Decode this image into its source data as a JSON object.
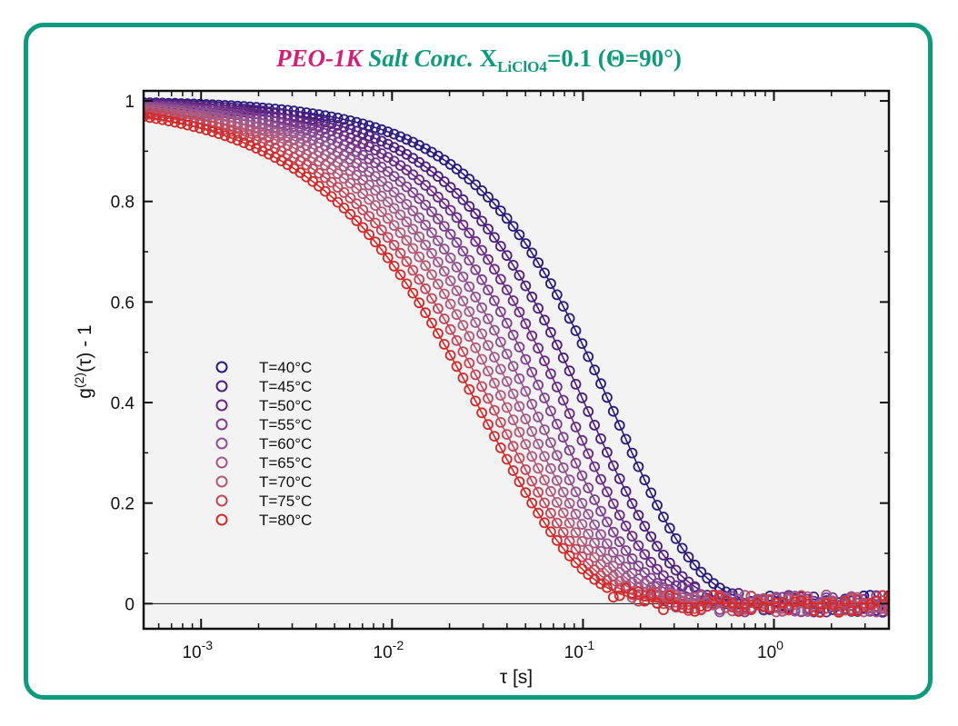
{
  "chart_data": {
    "type": "scatter",
    "title": {
      "part1": "PEO-1K",
      "part2": " Salt Conc. ",
      "part3": "X",
      "part3_sub": "LiClO4",
      "part4": "=0.1 (Θ=90°)",
      "part1_color": "#d11f7a",
      "part2_color": "#0e9a7d"
    },
    "xlabel": "τ [s]",
    "ylabel": "g(2)(τ) - 1",
    "ylabel_parts": {
      "pre": "g",
      "sup": "(2)",
      "post": "(τ) - 1"
    },
    "x_scale": "log",
    "xlim": [
      0.0005,
      4.0
    ],
    "ylim": [
      -0.05,
      1.02
    ],
    "xticks": [
      0.001,
      0.01,
      0.1,
      1
    ],
    "xtick_labels": [
      {
        "base": "10",
        "exp": "-3"
      },
      {
        "base": "10",
        "exp": "-2"
      },
      {
        "base": "10",
        "exp": "-1"
      },
      {
        "base": "10",
        "exp": "0"
      }
    ],
    "yticks": [
      0,
      0.2,
      0.4,
      0.6,
      0.8,
      1
    ],
    "ytick_labels": [
      "0",
      "0.2",
      "0.4",
      "0.6",
      "0.8",
      "1"
    ],
    "zero_line": true,
    "grid": false,
    "legend_position": "center-left",
    "marker": "open-circle",
    "fit_lines": true,
    "series": [
      {
        "name": "T=40°C",
        "color": "#2a1a7e",
        "tau": 0.3,
        "beta": 1.0
      },
      {
        "name": "T=45°C",
        "color": "#4c1f7e",
        "tau": 0.225,
        "beta": 0.98
      },
      {
        "name": "T=50°C",
        "color": "#6a2a86",
        "tau": 0.18,
        "beta": 0.96
      },
      {
        "name": "T=55°C",
        "color": "#7f3f8f",
        "tau": 0.148,
        "beta": 0.94
      },
      {
        "name": "T=60°C",
        "color": "#925190",
        "tau": 0.125,
        "beta": 0.92
      },
      {
        "name": "T=65°C",
        "color": "#a45a88",
        "tau": 0.108,
        "beta": 0.9
      },
      {
        "name": "T=70°C",
        "color": "#b45a78",
        "tau": 0.094,
        "beta": 0.88
      },
      {
        "name": "T=75°C",
        "color": "#c4465a",
        "tau": 0.081,
        "beta": 0.86
      },
      {
        "name": "T=80°C",
        "color": "#d22a2a",
        "tau": 0.07,
        "beta": 0.84
      }
    ]
  }
}
